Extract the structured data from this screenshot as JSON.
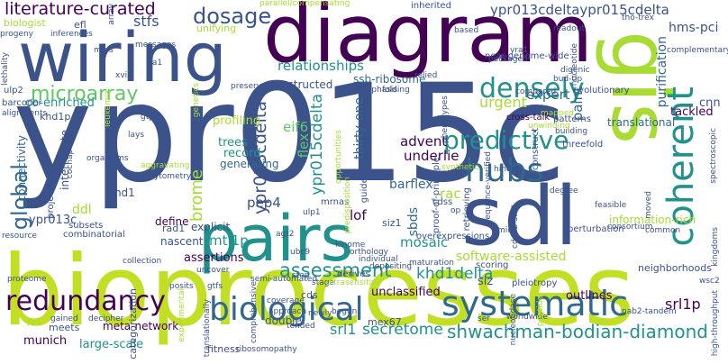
{
  "palette": {
    "dark_purple": "#440154",
    "indigo": "#3b528b",
    "slate_blue": "#31688e",
    "teal": "#21918c",
    "green": "#5ec962",
    "lime": "#a8db34",
    "yellow_green": "#c2df23"
  },
  "words": {
    "ypr015c": "ypr015c",
    "bioprocesses": "bioprocesses",
    "diagram": "diagram",
    "wiring": "wiring",
    "sdl": "sdl",
    "pairs": "pairs",
    "gis": "gis",
    "systematic": "systematic",
    "biological": "biological",
    "hubs": "hubs",
    "coherent": "coherent",
    "densely": "densely",
    "predictive": "predictive",
    "redundancy": "redundancy",
    "global": "global",
    "microarray": "microarray",
    "dosage": "dosage",
    "literature_curated": "literature-curated",
    "shwachman": "shwachman-bodian-diamond",
    "assessment": "assessment",
    "ypr013cdelta": "ypr013cdelta",
    "ypr015cdelta": "ypr015cdelta",
    "brome": "brome",
    "secretome": "secretome",
    "khd1delta": "khd1delta",
    "srl1": "srl1",
    "srl1p": "srl1p",
    "hms_pci": "hms-pci",
    "ypr013cdeltaypr015cdelta": "ypr013cdeltaypr015cdelta",
    "relationships": "relationships",
    "stfs": "stfs",
    "urgent": "urgent",
    "expert": "expert",
    "paint": "paint",
    "purification": "purification",
    "eif6": "eif6",
    "flex": "flex",
    "pep4": "pep4",
    "mtl1p": "mtl1p",
    "lof": "lof",
    "rac": "rac",
    "barflex": "barflex",
    "mosaic": "mosaic",
    "sbds": "sbds",
    "thirty_one": "thirty-one",
    "advent": "advent",
    "underlie": "underlie",
    "software_assisted": "software-assisted",
    "information_rich": "information-rich",
    "tackled": "tackled",
    "translational": "translational",
    "ssb_ribosome": "ssb-ribosome",
    "constructed": "constructed",
    "co_enriched": "co-enriched",
    "profiling": "profiling",
    "connectivity": "connectivity",
    "interrogate": "interrogate",
    "ypr013c": "ypr013c",
    "ddl": "ddl",
    "define": "define",
    "assertions": "assertions",
    "explicit": "explicit",
    "nascent": "nascent",
    "rad1": "rad1",
    "khd1": "khd1",
    "khd1p": "khd1p",
    "trees": "trees",
    "record": "record",
    "generating": "generating",
    "unclassified": "unclassified",
    "outlines": "outlines",
    "mex67": "mex67",
    "double": "double",
    "siz": "siz",
    "siz1": "siz1",
    "munich": "munich",
    "large_scale": "large-scale",
    "meta_network": "meta-network",
    "categorization": "categorization",
    "meets": "meets",
    "fitness": "fitness",
    "cds": "cds",
    "neighborhoods": "neighborhoods",
    "cnn": "cnn",
    "biologist": "biologist",
    "efl": "efl",
    "unifying": "unifying",
    "inherited": "inherited",
    "near_genome_wide": "near-genome-wide",
    "cross_talk": "cross-talk",
    "retrieving": "retrieving",
    "proof_of_principle": "proof-of-principle",
    "cdss": "cdss",
    "guidelines": "guidelines",
    "mrnas": "mrnas",
    "subsets": "subsets",
    "combinatorial": "combinatorial",
    "project": "project",
    "reconstruct": "reconstruct",
    "threefold": "threefold",
    "perturbation": "perturbation",
    "overexpressions": "overexpressions",
    "kinome": "kinome",
    "orthology": "orthology",
    "individual": "individual",
    "depositing": "depositing",
    "scoring": "scoring",
    "pleiotropy": "pleiotropy",
    "derives": "derives",
    "stage": "stage",
    "maturation": "maturation",
    "consortium": "consortium",
    "common": "common",
    "moved": "moved",
    "feasible": "feasible",
    "degree": "degree",
    "patterns": "patterns",
    "evolutionary": "evolutionary",
    "building": "building",
    "compared": "compared",
    "readout": "readout",
    "complementary": "complementary",
    "packaged": "packaged",
    "nucleotide": "nucleotide",
    "bud_tip": "bud-tip",
    "digenic": "digenic",
    "relied": "relied",
    "folding": "folding",
    "emphasis": "emphasis",
    "phenotypes": "phenotypes",
    "sequence_verified": "sequence-verified",
    "hinder": "hinder",
    "synthetic": "synthetic",
    "messages": "messages",
    "rfa1": "rfa1",
    "inferences": "inferences",
    "progeny": "progeny",
    "ulp2": "ulp2",
    "barcoder": "barcoder",
    "alignments": "alignments",
    "resource": "resource",
    "proteome": "proteome",
    "collection": "collection",
    "uncover": "uncover",
    "posits": "posits",
    "gained": "gained",
    "decipher": "decipher",
    "tended": "tended",
    "newly": "newly",
    "begun": "begun",
    "approach": "approach",
    "coverage": "coverage",
    "gtfs": "gtfs",
    "ser": "ser",
    "worldwide": "worldwide",
    "high_throughput": "high-throughput",
    "spectroscopic": "spectroscopic",
    "kingdoms": "kingdoms",
    "nab2_tandem": "nab2-tandem",
    "ribosomopathy": "ribosomopathy",
    "comprehensive": "comprehensive",
    "ulp1": "ulp1",
    "ubc9": "ubc9",
    "aggravating": "aggravating",
    "cytometry": "cytometry",
    "organisms": "organisms",
    "lays": "lays",
    "gtp": "gtp",
    "mips": "mips",
    "lethality": "lethality",
    "parallel_compensating": "parallel/compensating",
    "tho_trex": "tho-trex",
    "yra1": "yra1",
    "mid2": "mid2",
    "agt2": "agt2",
    "step": "step",
    "based": "based",
    "semi_automated": "semi-automated",
    "ultrasensitive": "ultrasensitive",
    "leukemia": "leukemia",
    "cochaperone": "cochaperone",
    "cdc28_stb1": "cdc28-stb1",
    "unwinding": "unwinding",
    "genetics": "genetics",
    "array": "array",
    "wsc2": "wsc2",
    "mapped": "mapped",
    "xvi": "xvi",
    "opportunities": "opportunities",
    "predisposition": "predisposition",
    "preserve": "preserve",
    "translationally": "translationally",
    "experimental": "experimental",
    "nucleotidase": "nucleotidase",
    "peptide": "peptide",
    "jlp1": "jlp1",
    "op": "op"
  }
}
